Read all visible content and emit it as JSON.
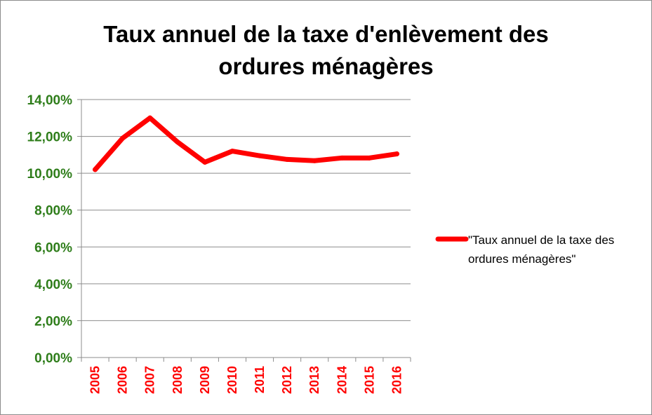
{
  "chart_data": {
    "type": "line",
    "title_lines": [
      "Taux annuel de la taxe d'enlèvement des",
      "ordures ménagères"
    ],
    "categories": [
      "2005",
      "2006",
      "2007",
      "2008",
      "2009",
      "2010",
      "2011",
      "2012",
      "2013",
      "2014",
      "2015",
      "2016"
    ],
    "series": [
      {
        "name": "\"Taux annuel de la taxe des ordures ménagères\"",
        "name_lines": [
          "\"Taux annuel de la taxe des",
          "ordures ménagères\""
        ],
        "color": "#ff0000",
        "values": [
          10.2,
          11.9,
          13.0,
          11.7,
          10.6,
          11.2,
          10.95,
          10.75,
          10.68,
          10.83,
          10.83,
          11.05
        ]
      }
    ],
    "y_ticks": [
      "0,00%",
      "2,00%",
      "4,00%",
      "6,00%",
      "8,00%",
      "10,00%",
      "12,00%",
      "14,00%"
    ],
    "ylim": [
      0,
      14
    ],
    "y_unit": "%",
    "grid": true,
    "legend_position": "right",
    "colors": {
      "series": "#ff0000",
      "y_tick_labels": "#2e7d1a",
      "x_tick_labels": "#ff0000",
      "gridlines": "#8c8c8c",
      "title": "#000000"
    }
  }
}
